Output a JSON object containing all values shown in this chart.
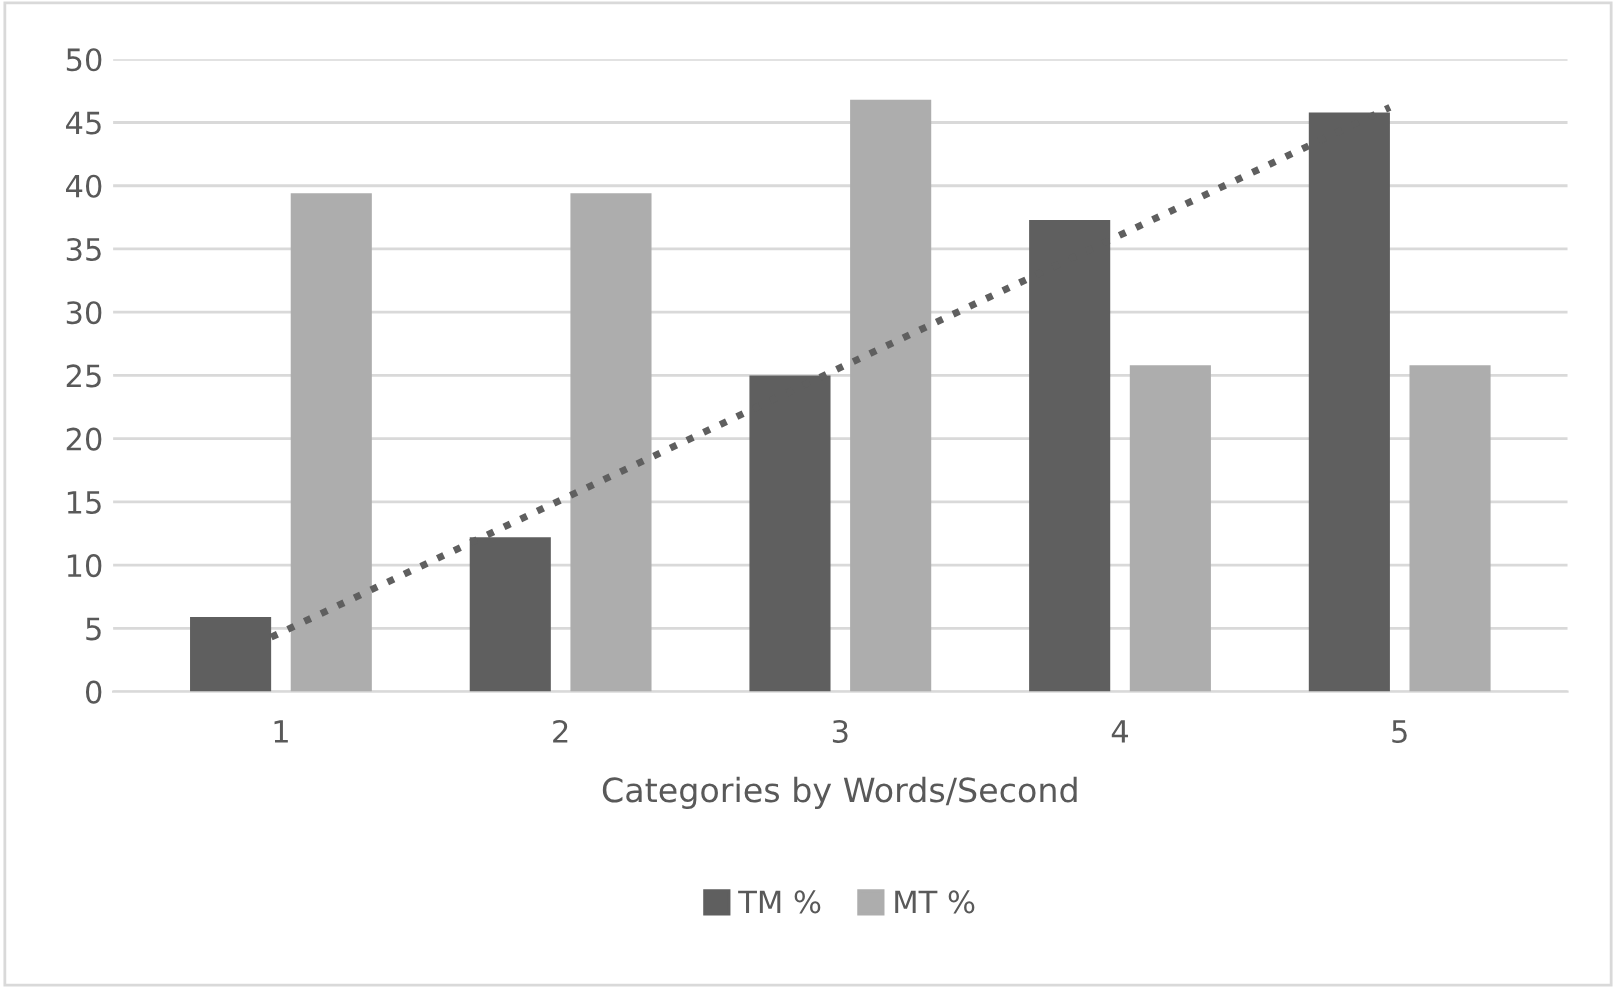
{
  "chart_data": {
    "type": "bar",
    "xlabel": "Categories by Words/Second",
    "categories": [
      "1",
      "2",
      "3",
      "4",
      "5"
    ],
    "series": [
      {
        "name": "TM %",
        "color": "#5f5f5f",
        "values": [
          5.9,
          12.2,
          25,
          37.3,
          45.8
        ]
      },
      {
        "name": "MT %",
        "color": "#adadad",
        "values": [
          39.4,
          39.4,
          46.8,
          25.8,
          25.8
        ]
      },
      {
        "type": "line",
        "x": [
          "1",
          "5"
        ],
        "values": [
          4.3,
          46.2
        ],
        "color": "#5f5f5f",
        "line_style": "dotted"
      }
    ],
    "ylim": [
      0,
      50
    ],
    "yticks": [
      0,
      5,
      10,
      15,
      20,
      25,
      30,
      35,
      40,
      45,
      50
    ],
    "grid": "y",
    "legend": "bottom"
  }
}
